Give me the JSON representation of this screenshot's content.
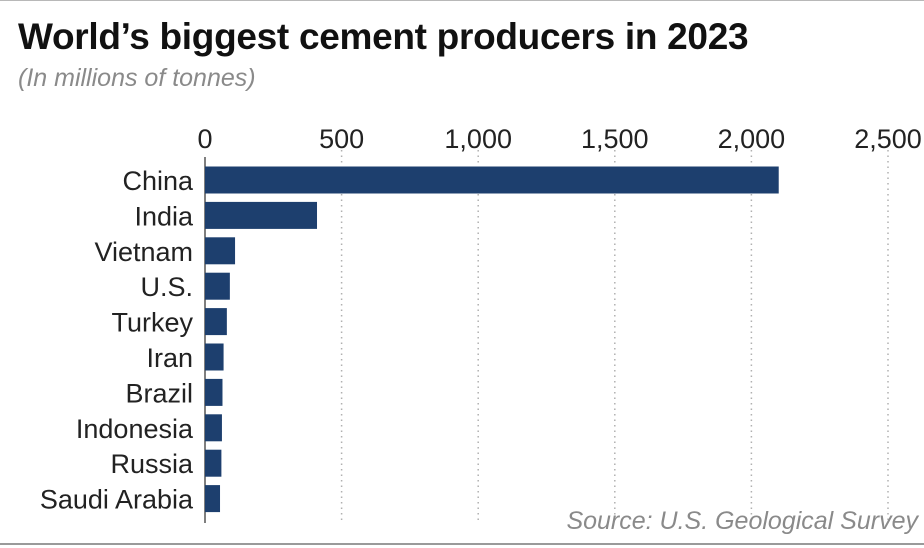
{
  "header": {
    "title": "World’s biggest cement producers in 2023",
    "subtitle": "(In millions of tonnes)"
  },
  "footer": {
    "source": "Source: U.S. Geological Survey"
  },
  "colors": {
    "bar": "#1d3f6e",
    "grid": "#b0b0b0",
    "axis": "#555555"
  },
  "chart_data": {
    "type": "bar",
    "orientation": "horizontal",
    "categories": [
      "China",
      "India",
      "Vietnam",
      "U.S.",
      "Turkey",
      "Iran",
      "Brazil",
      "Indonesia",
      "Russia",
      "Saudi Arabia"
    ],
    "values": [
      2100,
      410,
      110,
      91,
      80,
      68,
      64,
      62,
      60,
      55
    ],
    "xlim": [
      0,
      2500
    ],
    "ticks": [
      0,
      500,
      1000,
      1500,
      2000,
      2500
    ],
    "tick_labels": [
      "0",
      "500",
      "1,000",
      "1,500",
      "2,000",
      "2,500"
    ],
    "xlabel": "",
    "ylabel": "",
    "axis_position": "top",
    "grid": "vertical dotted",
    "legend": "none"
  }
}
